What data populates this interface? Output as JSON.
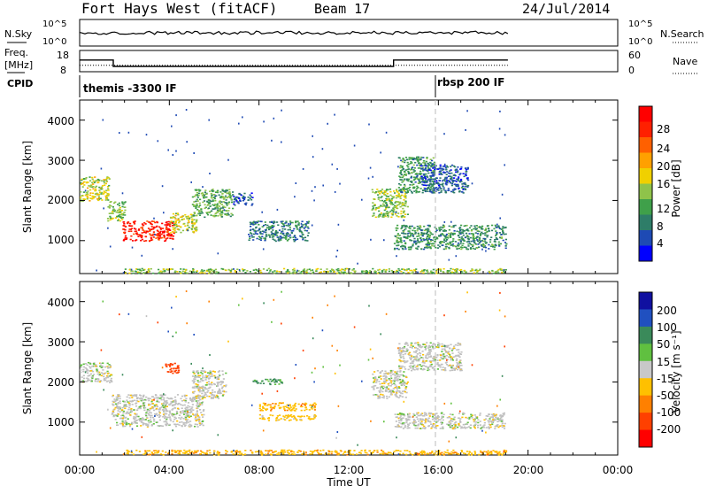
{
  "header": {
    "station": "Fort Hays West (fitACF)",
    "beam": "Beam 17",
    "date": "24/Jul/2014"
  },
  "noise_panel": {
    "left_label": "N.Sky",
    "left_ticks": [
      "10^5",
      "10^0"
    ],
    "right_ticks": [
      "10^5",
      "10^0"
    ],
    "right_label": "N.Search"
  },
  "freq_panel": {
    "left_label_1": "Freq.",
    "left_label_2": "[MHz]",
    "left_ticks": [
      "18",
      "8"
    ],
    "right_ticks": [
      "60",
      "0"
    ],
    "right_label": "Nave"
  },
  "cpid_panel": {
    "label": "CPID",
    "modes": [
      "themis -3300 IF",
      "rbsp 200 IF"
    ]
  },
  "xaxis": {
    "label": "Time UT",
    "ticks": [
      "00:00",
      "04:00",
      "08:00",
      "12:00",
      "16:00",
      "20:00",
      "00:00"
    ]
  },
  "power_panel": {
    "ylabel": "Slant Range [km]",
    "yticks": [
      "1000",
      "2000",
      "3000",
      "4000"
    ],
    "colorbar_label": "Power [dB]",
    "colorbar_ticks": [
      "4",
      "8",
      "12",
      "16",
      "20",
      "24",
      "28"
    ]
  },
  "velocity_panel": {
    "ylabel": "Slant Range [km]",
    "yticks": [
      "1000",
      "2000",
      "3000",
      "4000"
    ],
    "colorbar_label": "Velocity [m s⁻¹]",
    "colorbar_ticks": [
      "200",
      "100",
      "50",
      "15",
      "-15",
      "-50",
      "-100",
      "-200"
    ]
  },
  "colors": {
    "power_scale": [
      "#0000ff",
      "#1e4ab4",
      "#2e7d68",
      "#3fa04a",
      "#8fc34a",
      "#f0d000",
      "#ffa000",
      "#ff6000",
      "#ff2000",
      "#ff0000"
    ],
    "velocity_scale": [
      "#1010a0",
      "#2050c0",
      "#3a8a5a",
      "#60c040",
      "#c8c8c8",
      "#ffc000",
      "#ff8000",
      "#ff4000",
      "#ff0000"
    ],
    "ground_scatter": "#c0c0c0"
  },
  "chart_data": {
    "type": "heatmap",
    "x_range_hours": [
      0,
      24
    ],
    "y_range_km": [
      180,
      4500
    ],
    "power_regions": [
      {
        "t0": 0.0,
        "t1": 1.3,
        "r0": 2000,
        "r1": 2600,
        "power": 16
      },
      {
        "t0": 1.2,
        "t1": 2.0,
        "r0": 1500,
        "r1": 2000,
        "power": 14
      },
      {
        "t0": 1.9,
        "t1": 4.2,
        "r0": 1000,
        "r1": 1500,
        "power": 28
      },
      {
        "t0": 4.0,
        "t1": 5.2,
        "r0": 1200,
        "r1": 1700,
        "power": 16
      },
      {
        "t0": 5.0,
        "t1": 6.8,
        "r0": 1600,
        "r1": 2300,
        "power": 12
      },
      {
        "t0": 6.8,
        "t1": 7.7,
        "r0": 1900,
        "r1": 2200,
        "power": 6
      },
      {
        "t0": 7.5,
        "t1": 10.2,
        "r0": 1000,
        "r1": 1500,
        "power": 8
      },
      {
        "t0": 13.0,
        "t1": 14.6,
        "r0": 1600,
        "r1": 2300,
        "power": 14
      },
      {
        "t0": 14.2,
        "t1": 15.8,
        "r0": 2200,
        "r1": 3100,
        "power": 10
      },
      {
        "t0": 15.2,
        "t1": 17.3,
        "r0": 2200,
        "r1": 2900,
        "power": 6
      },
      {
        "t0": 14.0,
        "t1": 19.0,
        "r0": 800,
        "r1": 1400,
        "power": 10
      },
      {
        "t0": 2.0,
        "t1": 19.0,
        "r0": 200,
        "r1": 320,
        "power": 14
      }
    ],
    "velocity_regions": [
      {
        "t0": 0.0,
        "t1": 1.4,
        "r0": 2000,
        "r1": 2500,
        "velocity": 0
      },
      {
        "t0": 1.4,
        "t1": 5.5,
        "r0": 900,
        "r1": 1700,
        "velocity": 0
      },
      {
        "t0": 5.0,
        "t1": 6.5,
        "r0": 1600,
        "r1": 2300,
        "velocity": 0
      },
      {
        "t0": 7.7,
        "t1": 9.0,
        "r0": 1950,
        "r1": 2100,
        "velocity": 60
      },
      {
        "t0": 3.8,
        "t1": 4.4,
        "r0": 2200,
        "r1": 2500,
        "velocity": -150
      },
      {
        "t0": 8.0,
        "t1": 10.5,
        "r0": 1300,
        "r1": 1500,
        "velocity": -40
      },
      {
        "t0": 8.0,
        "t1": 10.5,
        "r0": 1050,
        "r1": 1200,
        "velocity": -30
      },
      {
        "t0": 13.0,
        "t1": 14.6,
        "r0": 1600,
        "r1": 2300,
        "velocity": 0
      },
      {
        "t0": 14.0,
        "t1": 19.0,
        "r0": 850,
        "r1": 1250,
        "velocity": 0
      },
      {
        "t0": 14.2,
        "t1": 17.0,
        "r0": 2300,
        "r1": 3000,
        "velocity": 0
      },
      {
        "t0": 2.0,
        "t1": 19.0,
        "r0": 200,
        "r1": 320,
        "velocity": -40
      }
    ],
    "freq_mhz": [
      {
        "t0": 0.0,
        "t1": 1.5,
        "value": 13.5
      },
      {
        "t0": 1.5,
        "t1": 14.0,
        "value": 10.5
      },
      {
        "t0": 14.0,
        "t1": 19.1,
        "value": 13.5
      }
    ],
    "nave": [
      {
        "t0": 0.0,
        "t1": 19.1,
        "value": 18
      }
    ],
    "noise_sky_log10": [
      {
        "t0": 0.0,
        "t1": 19.1,
        "value": 2.5
      }
    ],
    "cpid_switch_hours": [
      0.0,
      16.0
    ]
  }
}
